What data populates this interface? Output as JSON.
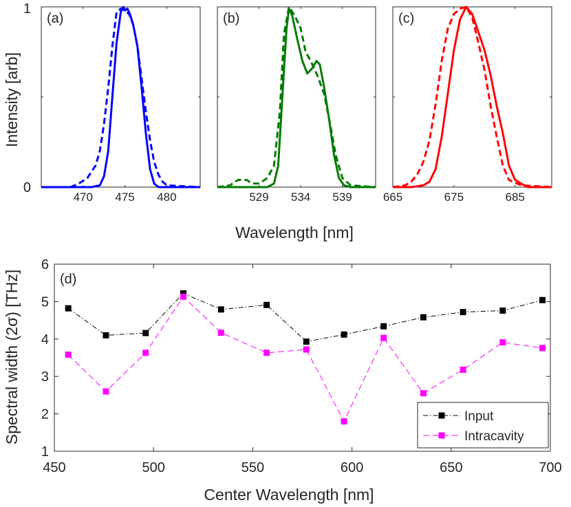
{
  "chart_data": [
    {
      "panel": "a",
      "type": "line",
      "label": "(a)",
      "xlim": [
        465,
        484
      ],
      "ylim": [
        0,
        1
      ],
      "xticks": [
        470,
        475,
        480
      ],
      "yticks": [
        0,
        1
      ],
      "color": "#0000ff",
      "series": [
        {
          "name": "solid",
          "style": "solid",
          "x": [
            465,
            470,
            471,
            472,
            472.5,
            473,
            473.5,
            474,
            474.5,
            474.8,
            475,
            475.3,
            475.6,
            476,
            476.5,
            477,
            477.5,
            478,
            478.5,
            479,
            480,
            484
          ],
          "y": [
            0.0,
            0.0,
            0.0,
            0.01,
            0.06,
            0.2,
            0.5,
            0.8,
            0.97,
            1.0,
            0.98,
            0.99,
            0.96,
            0.9,
            0.78,
            0.55,
            0.3,
            0.1,
            0.02,
            0.0,
            0.0,
            0.0
          ]
        },
        {
          "name": "dashed",
          "style": "dashed",
          "x": [
            465,
            467,
            468.5,
            469.5,
            470.5,
            471.5,
            472,
            472.5,
            473,
            473.5,
            474,
            474.5,
            475,
            475.5,
            476,
            476.5,
            477,
            477.5,
            478,
            478.5,
            479,
            479.5,
            480,
            484
          ],
          "y": [
            0.0,
            0.0,
            0.0,
            0.02,
            0.05,
            0.12,
            0.2,
            0.35,
            0.55,
            0.78,
            0.97,
            0.99,
            0.98,
            0.96,
            0.9,
            0.78,
            0.6,
            0.42,
            0.26,
            0.14,
            0.07,
            0.03,
            0.01,
            0.0
          ]
        }
      ]
    },
    {
      "panel": "b",
      "type": "line",
      "label": "(b)",
      "xlim": [
        524,
        543
      ],
      "ylim": [
        0,
        1
      ],
      "xticks": [
        529,
        534,
        539
      ],
      "color": "#007a00",
      "series": [
        {
          "name": "solid",
          "style": "solid",
          "x": [
            524,
            530,
            530.8,
            531.3,
            531.8,
            532.3,
            532.6,
            533,
            533.6,
            534.2,
            534.8,
            535.4,
            535.9,
            536.3,
            536.8,
            537.4,
            538,
            538.6,
            539.2,
            540,
            543
          ],
          "y": [
            0.0,
            0.0,
            0.02,
            0.12,
            0.5,
            0.88,
            0.99,
            0.95,
            0.82,
            0.7,
            0.63,
            0.66,
            0.7,
            0.68,
            0.56,
            0.38,
            0.18,
            0.05,
            0.01,
            0.0,
            0.0
          ]
        },
        {
          "name": "dashed",
          "style": "dashed",
          "x": [
            524,
            525.5,
            526.5,
            527.5,
            528.2,
            529,
            530,
            530.8,
            531.5,
            532,
            532.6,
            533.3,
            534,
            534.6,
            535.2,
            536,
            536.8,
            537.5,
            538.2,
            539,
            540,
            543
          ],
          "y": [
            0.0,
            0.01,
            0.04,
            0.04,
            0.02,
            0.02,
            0.05,
            0.12,
            0.42,
            0.85,
            1.0,
            0.95,
            0.88,
            0.75,
            0.7,
            0.62,
            0.52,
            0.36,
            0.18,
            0.05,
            0.01,
            0.0
          ]
        }
      ]
    },
    {
      "panel": "c",
      "type": "line",
      "label": "(c)",
      "xlim": [
        665,
        691
      ],
      "ylim": [
        0,
        1
      ],
      "xticks": [
        665,
        675,
        685
      ],
      "color": "#ff0000",
      "series": [
        {
          "name": "solid",
          "style": "solid",
          "x": [
            665,
            668,
            670,
            671,
            672,
            673,
            674,
            675,
            676,
            677,
            678,
            679,
            680,
            681,
            682,
            683,
            684,
            685,
            687,
            691
          ],
          "y": [
            0.0,
            0.0,
            0.01,
            0.03,
            0.1,
            0.28,
            0.52,
            0.76,
            0.93,
            1.0,
            0.96,
            0.86,
            0.76,
            0.62,
            0.45,
            0.3,
            0.12,
            0.04,
            0.0,
            0.0
          ]
        },
        {
          "name": "dashed",
          "style": "dashed",
          "x": [
            665,
            667,
            668,
            669,
            670,
            671,
            672,
            673,
            674,
            675,
            676,
            677,
            678,
            679,
            680,
            681,
            682,
            683,
            684,
            686,
            691
          ],
          "y": [
            0.0,
            0.01,
            0.03,
            0.07,
            0.14,
            0.26,
            0.46,
            0.7,
            0.88,
            0.96,
            0.99,
            1.0,
            0.94,
            0.8,
            0.65,
            0.45,
            0.28,
            0.12,
            0.04,
            0.01,
            0.0
          ]
        }
      ]
    },
    {
      "panel": "d",
      "type": "line",
      "label": "(d)",
      "xlim": [
        450,
        700
      ],
      "ylim": [
        1,
        6
      ],
      "xticks": [
        450,
        500,
        550,
        600,
        650,
        700
      ],
      "yticks": [
        1,
        2,
        3,
        4,
        5,
        6
      ],
      "xlabel": "Center Wavelength [nm]",
      "ylabel": "Spectral width (2σ) [THz]",
      "series": [
        {
          "name": "Input",
          "color": "#000000",
          "style": "dashdot",
          "x": [
            457,
            476,
            496,
            515,
            534,
            557,
            577,
            596,
            616,
            636,
            656,
            676,
            696
          ],
          "y": [
            4.82,
            4.1,
            4.16,
            5.22,
            4.79,
            4.91,
            3.93,
            4.12,
            4.34,
            4.58,
            4.72,
            4.76,
            5.04
          ]
        },
        {
          "name": "Intracavity",
          "color": "#ff00ff",
          "style": "dashed",
          "x": [
            457,
            476,
            496,
            515,
            534,
            557,
            577,
            596,
            616,
            636,
            656,
            676,
            696
          ],
          "y": [
            3.58,
            2.6,
            3.63,
            5.13,
            4.17,
            3.63,
            3.72,
            1.8,
            4.03,
            2.55,
            3.18,
            3.91,
            3.76
          ]
        }
      ]
    }
  ],
  "shared": {
    "top_ylabel": "Intensity [arb]",
    "top_xlabel": "Wavelength [nm]",
    "top_ytick_labels": [
      "0",
      "1"
    ]
  }
}
